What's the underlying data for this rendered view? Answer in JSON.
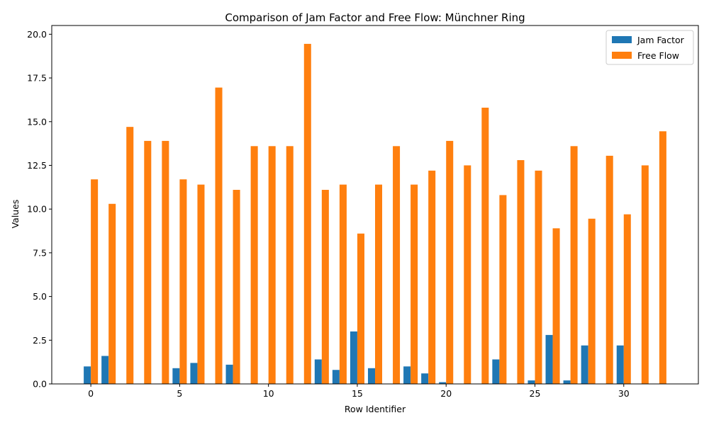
{
  "chart_data": {
    "type": "bar",
    "title": "Comparison of Jam Factor and Free Flow: Münchner Ring",
    "xlabel": "Row Identifier",
    "ylabel": "Values",
    "ylim": [
      0,
      20.5
    ],
    "xlim": [
      -2.2,
      34.2
    ],
    "x": [
      0,
      1,
      2,
      3,
      4,
      5,
      6,
      7,
      8,
      9,
      10,
      11,
      12,
      13,
      14,
      15,
      16,
      17,
      18,
      19,
      20,
      21,
      22,
      23,
      24,
      25,
      26,
      27,
      28,
      29,
      30,
      31,
      32
    ],
    "x_ticks": [
      0,
      5,
      10,
      15,
      20,
      25,
      30
    ],
    "x_tick_labels": [
      "0",
      "5",
      "10",
      "15",
      "20",
      "25",
      "30"
    ],
    "y_ticks": [
      0,
      2.5,
      5,
      7.5,
      10,
      12.5,
      15,
      17.5,
      20
    ],
    "y_tick_labels": [
      "0.0",
      "2.5",
      "5.0",
      "7.5",
      "10.0",
      "12.5",
      "15.0",
      "17.5",
      "20.0"
    ],
    "legend_position": "top-right",
    "grid": false,
    "series": [
      {
        "name": "Jam Factor",
        "color": "#1f77b4",
        "values": [
          1.0,
          1.6,
          0,
          0,
          0,
          0.9,
          1.2,
          0,
          1.1,
          0,
          0,
          0,
          0,
          1.4,
          0.8,
          3.0,
          0.9,
          0,
          1.0,
          0.6,
          0.1,
          0,
          0,
          1.4,
          0,
          0.2,
          2.8,
          0.2,
          2.2,
          0,
          2.2,
          0,
          0
        ]
      },
      {
        "name": "Free Flow",
        "color": "#ff7f0e",
        "values": [
          11.7,
          10.3,
          14.7,
          13.9,
          13.9,
          11.7,
          11.4,
          16.95,
          11.1,
          13.6,
          13.6,
          13.6,
          19.45,
          11.1,
          11.4,
          8.6,
          11.4,
          13.6,
          11.4,
          12.2,
          13.9,
          12.5,
          15.8,
          10.8,
          12.8,
          12.2,
          8.9,
          13.6,
          9.45,
          13.05,
          9.7,
          12.5,
          14.45
        ]
      }
    ]
  }
}
